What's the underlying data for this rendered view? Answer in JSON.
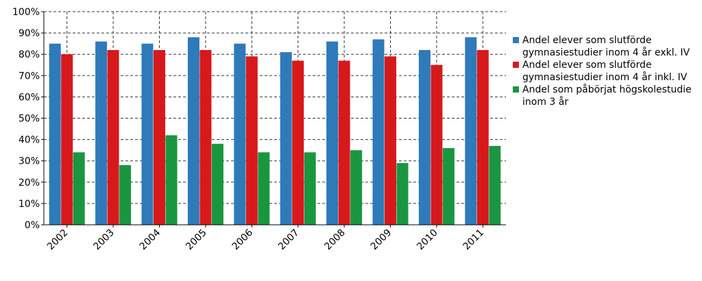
{
  "chart_data": {
    "type": "bar",
    "categories": [
      "2002",
      "2003",
      "2004",
      "2005",
      "2006",
      "2007",
      "2008",
      "2009",
      "2010",
      "2011"
    ],
    "series": [
      {
        "name": "Andel elever som slutförde gymnasiestudier inom 4 år exkl. IV",
        "color": "#2f7ab9",
        "values": [
          85,
          86,
          85,
          88,
          85,
          81,
          86,
          87,
          82,
          88
        ]
      },
      {
        "name": "Andel elever som slutförde gymnasiestudier inom 4 år inkl. IV",
        "color": "#d7191c",
        "values": [
          80,
          82,
          82,
          82,
          79,
          77,
          77,
          79,
          75,
          82
        ]
      },
      {
        "name": "Andel som påbörjat högskolestudie inom 3 år",
        "color": "#1a9641",
        "values": [
          34,
          28,
          42,
          38,
          34,
          34,
          35,
          29,
          36,
          37
        ]
      }
    ],
    "ylim": [
      0,
      100
    ],
    "yticks": [
      "0%",
      "10%",
      "20%",
      "30%",
      "40%",
      "50%",
      "60%",
      "70%",
      "80%",
      "90%",
      "100%"
    ],
    "grid": true,
    "legend": "right"
  }
}
